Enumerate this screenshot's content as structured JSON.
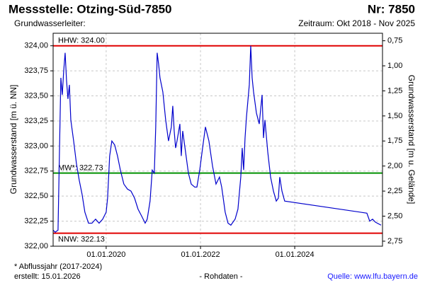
{
  "chart_data": {
    "type": "line",
    "title": "Messstelle: Otzing-Süd-7850",
    "title_right": "Nr: 7850",
    "subtitle": "Grundwasserleiter:",
    "subtitle_right": "Zeitraum: Okt 2018 - Nov 2025",
    "ylabel": "Grundwasserstand [m ü. NN]",
    "y2label": "Grundwasserstand [m u. Gelände]",
    "xlim": [
      "2018-11-16",
      "2025-11-11"
    ],
    "xticks": [
      {
        "value": "2020-01-01",
        "label": "01.01.2020"
      },
      {
        "value": "2022-01-01",
        "label": "01.01.2022"
      },
      {
        "value": "2024-01-01",
        "label": "01.01.2024"
      }
    ],
    "ylim": [
      322.0,
      324.125
    ],
    "yticks": [
      {
        "value": 322.0,
        "label": "322,00"
      },
      {
        "value": 322.25,
        "label": "322,25"
      },
      {
        "value": 322.5,
        "label": "322,50"
      },
      {
        "value": 322.75,
        "label": "322,75"
      },
      {
        "value": 323.0,
        "label": "323,00"
      },
      {
        "value": 323.25,
        "label": "323,25"
      },
      {
        "value": 323.5,
        "label": "323,50"
      },
      {
        "value": 323.75,
        "label": "323,75"
      },
      {
        "value": 324.0,
        "label": "324,00"
      }
    ],
    "y2lim": [
      0.675,
      2.8
    ],
    "y2_inverted": true,
    "y2ticks": [
      {
        "value": 0.75,
        "label": "0,75"
      },
      {
        "value": 1.0,
        "label": "1,00"
      },
      {
        "value": 1.25,
        "label": "1,25"
      },
      {
        "value": 1.5,
        "label": "1,50"
      },
      {
        "value": 1.75,
        "label": "1,75"
      },
      {
        "value": 2.0,
        "label": "2,00"
      },
      {
        "value": 2.25,
        "label": "2,25"
      },
      {
        "value": 2.5,
        "label": "2,50"
      },
      {
        "value": 2.75,
        "label": "2,75"
      }
    ],
    "grid": true,
    "reference_lines": [
      {
        "label": "HHW: 324.00",
        "value": 324.0,
        "color": "#e00000"
      },
      {
        "label": "MW*: 322.73",
        "value": 322.73,
        "color": "#009000"
      },
      {
        "label": "NNW: 322.13",
        "value": 322.13,
        "color": "#e00000"
      }
    ],
    "x": [
      "2018-11-16",
      "2018-12-02",
      "2018-12-24",
      "2019-01-04",
      "2019-01-15",
      "2019-01-26",
      "2019-02-06",
      "2019-02-17",
      "2019-02-28",
      "2019-03-11",
      "2019-03-22",
      "2019-04-02",
      "2019-04-24",
      "2019-05-15",
      "2019-06-06",
      "2019-06-28",
      "2019-07-20",
      "2019-08-17",
      "2019-09-13",
      "2019-10-11",
      "2019-11-07",
      "2019-12-05",
      "2020-01-01",
      "2020-01-12",
      "2020-01-28",
      "2020-02-14",
      "2020-03-07",
      "2020-03-29",
      "2020-04-20",
      "2020-05-17",
      "2020-06-14",
      "2020-07-11",
      "2020-08-08",
      "2020-09-04",
      "2020-10-02",
      "2020-10-29",
      "2020-11-14",
      "2020-12-06",
      "2020-12-23",
      "2021-01-08",
      "2021-01-19",
      "2021-01-30",
      "2021-02-10",
      "2021-02-21",
      "2021-03-15",
      "2021-04-06",
      "2021-04-28",
      "2021-05-20",
      "2021-05-31",
      "2021-06-11",
      "2021-06-22",
      "2021-07-03",
      "2021-07-25",
      "2021-08-05",
      "2021-08-16",
      "2021-09-07",
      "2021-09-29",
      "2021-10-21",
      "2021-11-17",
      "2021-12-04",
      "2021-12-26",
      "2022-01-17",
      "2022-02-08",
      "2022-03-07",
      "2022-04-04",
      "2022-05-01",
      "2022-05-28",
      "2022-06-14",
      "2022-07-11",
      "2022-08-02",
      "2022-08-24",
      "2022-09-26",
      "2022-10-18",
      "2022-11-09",
      "2022-11-20",
      "2022-12-01",
      "2022-12-12",
      "2022-12-23",
      "2023-01-14",
      "2023-01-25",
      "2023-02-05",
      "2023-02-16",
      "2023-03-10",
      "2023-04-01",
      "2023-04-23",
      "2023-05-04",
      "2023-05-15",
      "2023-06-06",
      "2023-06-28",
      "2023-07-20",
      "2023-08-11",
      "2023-08-27",
      "2023-09-07",
      "2023-09-24",
      "2023-10-15",
      "2025-07-13",
      "2025-08-04",
      "2025-08-26",
      "2025-09-17",
      "2025-10-31"
    ],
    "series": [
      {
        "color": "#0000cc",
        "values": [
          322.16,
          322.14,
          322.16,
          322.94,
          323.68,
          323.51,
          323.75,
          323.93,
          323.65,
          323.47,
          323.61,
          323.26,
          323.05,
          322.83,
          322.66,
          322.52,
          322.34,
          322.23,
          322.23,
          322.27,
          322.23,
          322.27,
          322.34,
          322.48,
          322.9,
          323.05,
          323.01,
          322.9,
          322.76,
          322.62,
          322.57,
          322.55,
          322.48,
          322.37,
          322.3,
          322.23,
          322.27,
          322.45,
          322.76,
          322.73,
          323.19,
          323.93,
          323.82,
          323.68,
          323.54,
          323.26,
          323.05,
          323.19,
          323.4,
          323.15,
          322.98,
          323.05,
          323.22,
          322.9,
          323.15,
          322.94,
          322.73,
          322.62,
          322.59,
          322.59,
          322.76,
          322.98,
          323.19,
          323.05,
          322.8,
          322.62,
          322.69,
          322.59,
          322.34,
          322.23,
          322.21,
          322.27,
          322.37,
          322.69,
          322.98,
          322.76,
          323.08,
          323.29,
          323.61,
          324.0,
          323.68,
          323.54,
          323.33,
          323.22,
          323.51,
          323.08,
          323.26,
          322.94,
          322.69,
          322.55,
          322.45,
          322.48,
          322.69,
          322.55,
          322.45,
          322.33,
          322.25,
          322.27,
          322.24,
          322.21
        ]
      }
    ],
    "footnote": "* Abflussjahr (2017-2024)",
    "created": "erstellt:  15.01.2026",
    "data_kind": "- Rohdaten -",
    "source": "Quelle: www.lfu.bayern.de"
  }
}
